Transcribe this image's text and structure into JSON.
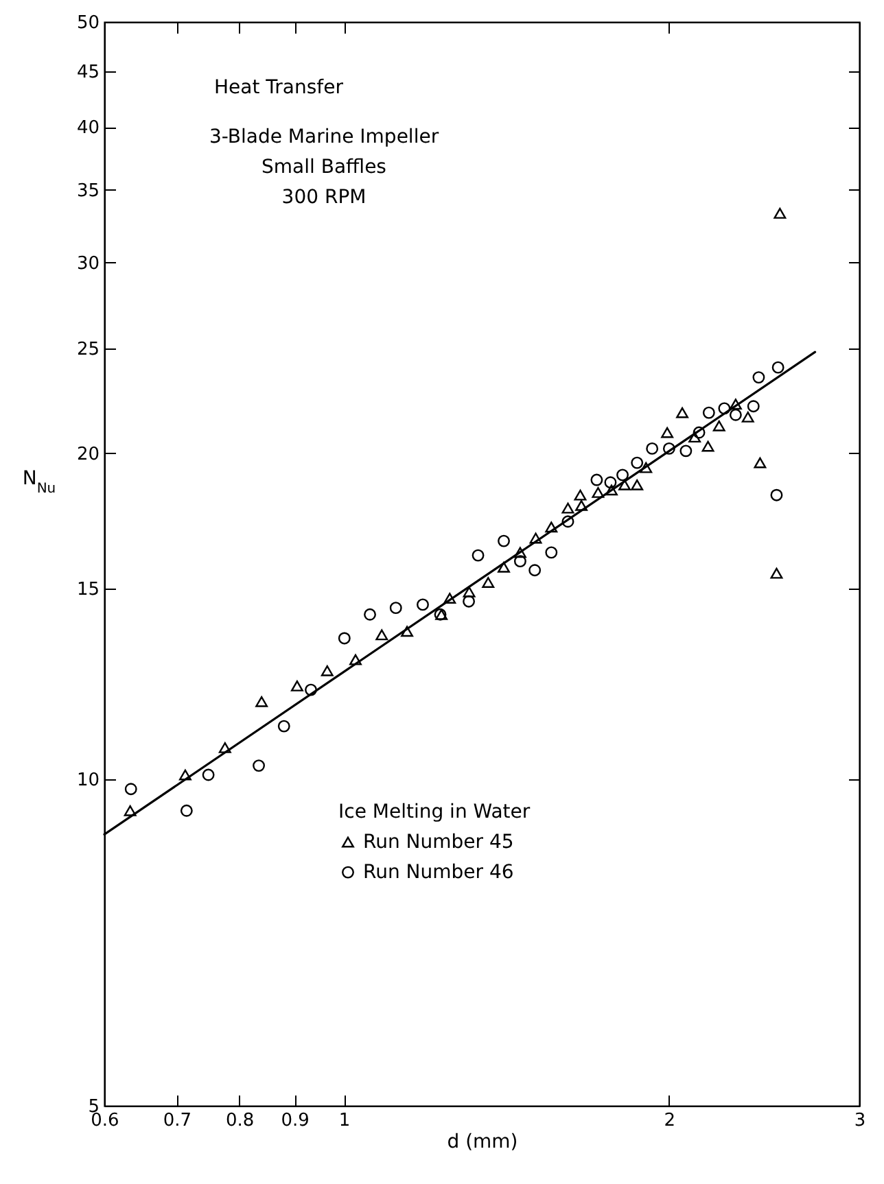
{
  "chart_data": {
    "type": "scatter",
    "xlabel": "d (mm)",
    "ylabel": "N$_{Nu}$",
    "legend_title": "Ice Melting in Water",
    "legend": "bottom",
    "annotations": [
      "Heat Transfer",
      "3-Blade Marine Impeller",
      "Small Baffles",
      "300 RPM"
    ],
    "log": "xy",
    "xlim": [
      0.6,
      3
    ],
    "ylim": [
      5,
      50
    ],
    "xticks": [
      0.6,
      0.7,
      0.8,
      0.9,
      1,
      2,
      3
    ],
    "yticks": [
      5,
      10,
      15,
      20,
      25,
      30,
      35,
      40,
      45,
      50
    ],
    "series": [
      {
        "name": "Run Number 45",
        "type": "scatter",
        "marker": "triangle",
        "color": "#000000",
        "x": [
          0.634,
          0.713,
          0.776,
          0.839,
          0.905,
          0.965,
          1.025,
          1.084,
          1.144,
          1.231,
          1.253,
          1.306,
          1.36,
          1.406,
          1.456,
          1.505,
          1.556,
          1.612,
          1.655,
          1.659,
          1.719,
          1.769,
          1.819,
          1.868,
          1.904,
          1.992,
          2.057,
          2.112,
          2.173,
          2.225,
          2.305,
          2.366,
          2.428,
          2.515,
          2.533
        ],
        "values": [
          9.36,
          10.1,
          10.7,
          11.8,
          12.2,
          12.6,
          12.9,
          13.6,
          13.7,
          14.2,
          14.7,
          14.9,
          15.2,
          15.7,
          16.2,
          16.7,
          17.1,
          17.8,
          18.3,
          17.9,
          18.4,
          18.5,
          18.7,
          18.7,
          19.4,
          20.9,
          21.8,
          20.7,
          20.3,
          21.2,
          22.2,
          21.6,
          19.6,
          15.5,
          33.3
        ]
      },
      {
        "name": "Run Number 46",
        "type": "scatter",
        "marker": "circle",
        "color": "#000000",
        "x": [
          0.635,
          0.715,
          0.749,
          0.834,
          0.88,
          0.932,
          1.001,
          1.057,
          1.117,
          1.183,
          1.228,
          1.305,
          1.331,
          1.406,
          1.456,
          1.502,
          1.556,
          1.612,
          1.714,
          1.765,
          1.811,
          1.868,
          1.929,
          2.0,
          2.073,
          2.132,
          2.177,
          2.25,
          2.305,
          2.394,
          2.421,
          2.523,
          2.515
        ],
        "values": [
          9.8,
          9.36,
          10.1,
          10.3,
          11.2,
          12.1,
          13.5,
          14.2,
          14.4,
          14.5,
          14.2,
          14.6,
          16.1,
          16.6,
          15.9,
          15.6,
          16.2,
          17.3,
          18.9,
          18.8,
          19.1,
          19.6,
          20.2,
          20.2,
          20.1,
          20.9,
          21.8,
          22.0,
          21.7,
          22.1,
          23.5,
          24.0,
          18.3
        ]
      },
      {
        "type": "line",
        "color": "#000000",
        "x": [
          0.6,
          2.73
        ],
        "values": [
          8.9,
          24.8
        ]
      }
    ]
  }
}
